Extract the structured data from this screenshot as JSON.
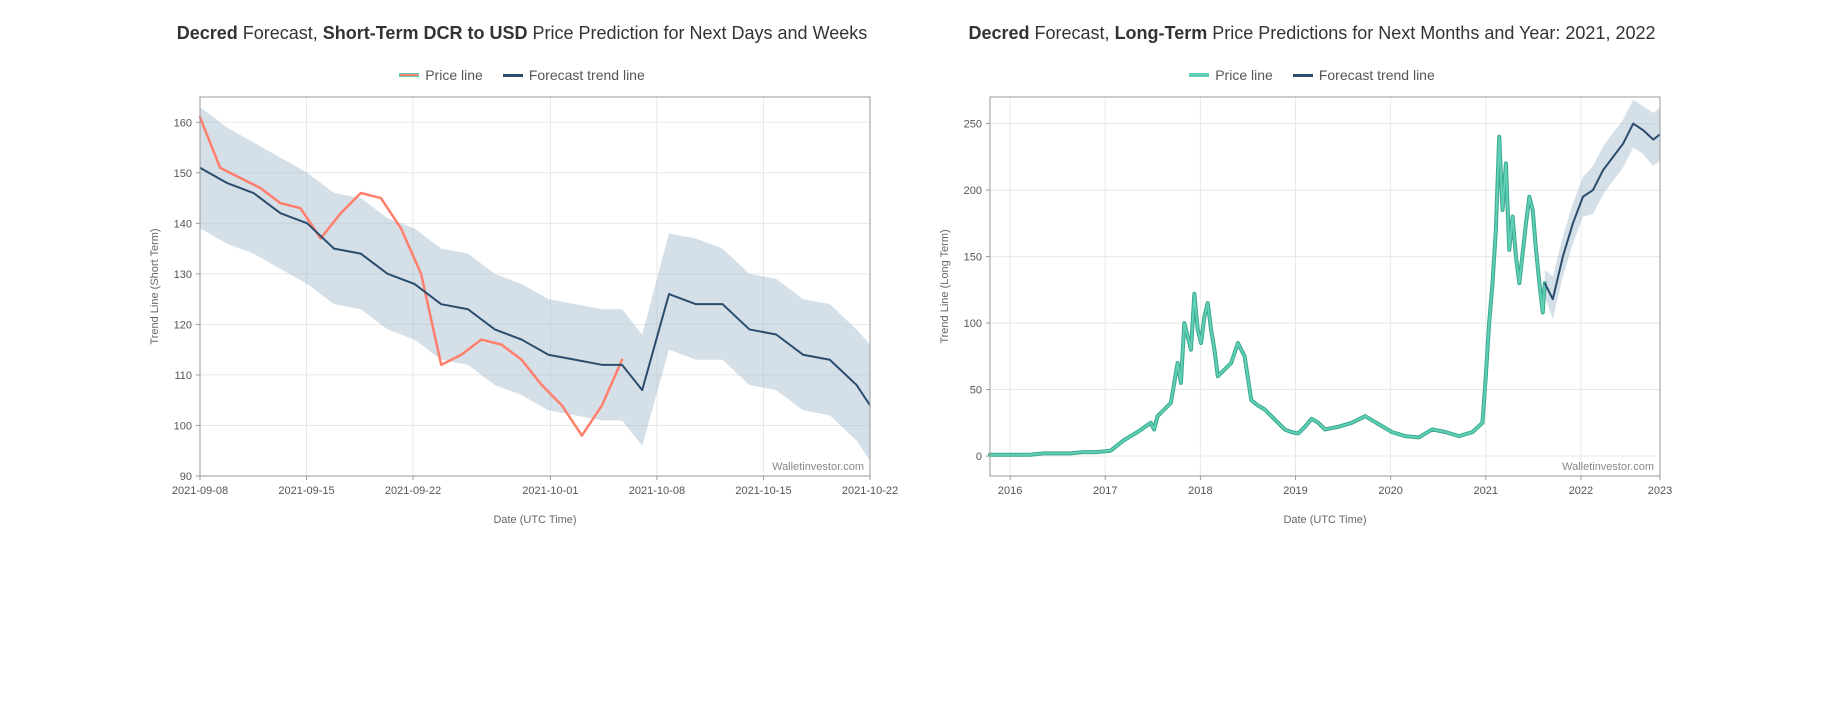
{
  "left": {
    "title_parts": [
      "Decred",
      " Forecast, ",
      "Short-Term DCR to USD",
      " Price Prediction for Next Days and Weeks"
    ],
    "title_bold_idx": [
      0,
      2
    ],
    "legend": {
      "price": "Price line",
      "forecast": "Forecast trend line"
    },
    "type": "line",
    "xlabel": "Date (UTC Time)",
    "ylabel": "Trend Line (Short Term)",
    "ylim": [
      90,
      165
    ],
    "yticks": [
      90,
      100,
      110,
      120,
      130,
      140,
      150,
      160
    ],
    "xticks": [
      "2021-09-08",
      "2021-09-15",
      "2021-09-22",
      "2021-10-01",
      "2021-10-08",
      "2021-10-15",
      "2021-10-22"
    ],
    "xtick_pos": [
      0,
      0.159,
      0.318,
      0.523,
      0.682,
      0.841,
      1.0
    ],
    "watermark": "Walletinvestor.com",
    "colors": {
      "price": "#ff7f6d",
      "forecast": "#2a4d6e",
      "band": "#9fb8cc",
      "band_opacity": 0.45,
      "grid": "#e8e8e8",
      "border": "#999999",
      "bg": "#ffffff"
    },
    "line_width": {
      "price": 2.5,
      "forecast": 2
    },
    "x": [
      0,
      0.03,
      0.06,
      0.09,
      0.12,
      0.15,
      0.18,
      0.21,
      0.24,
      0.27,
      0.3,
      0.33,
      0.36,
      0.39,
      0.42,
      0.45,
      0.48,
      0.51,
      0.54,
      0.57,
      0.6,
      0.63
    ],
    "price": [
      161,
      151,
      149,
      147,
      144,
      143,
      137,
      142,
      146,
      145,
      139,
      130,
      112,
      114,
      117,
      116,
      113,
      108,
      104,
      98,
      104,
      113
    ],
    "forecast_x": [
      0,
      0.04,
      0.08,
      0.12,
      0.16,
      0.2,
      0.24,
      0.28,
      0.32,
      0.36,
      0.4,
      0.44,
      0.48,
      0.52,
      0.56,
      0.6,
      0.63,
      0.66,
      0.7,
      0.74,
      0.78,
      0.82,
      0.86,
      0.9,
      0.94,
      0.98,
      1.0
    ],
    "forecast": [
      151,
      148,
      146,
      142,
      140,
      135,
      134,
      130,
      128,
      124,
      123,
      119,
      117,
      114,
      113,
      112,
      112,
      107,
      126,
      124,
      124,
      119,
      118,
      114,
      113,
      108,
      104
    ],
    "band_upper": [
      163,
      159,
      156,
      153,
      150,
      146,
      145,
      141,
      139,
      135,
      134,
      130,
      128,
      125,
      124,
      123,
      123,
      118,
      138,
      137,
      135,
      130,
      129,
      125,
      124,
      119,
      116
    ],
    "band_lower": [
      139,
      136,
      134,
      131,
      128,
      124,
      123,
      119,
      117,
      113,
      112,
      108,
      106,
      103,
      102,
      101,
      101,
      96,
      115,
      113,
      113,
      108,
      107,
      103,
      102,
      97,
      93
    ]
  },
  "right": {
    "title_parts": [
      "Decred",
      " Forecast, ",
      "Long-Term",
      " Price Predictions for Next Months and Year: 2021, 2022"
    ],
    "title_bold_idx": [
      0,
      2
    ],
    "legend": {
      "price": "Price line",
      "forecast": "Forecast trend line"
    },
    "type": "line",
    "xlabel": "Date (UTC Time)",
    "ylabel": "Trend Line (Long Term)",
    "ylim": [
      -15,
      270
    ],
    "yticks": [
      0,
      50,
      100,
      150,
      200,
      250
    ],
    "xticks": [
      "2016",
      "2017",
      "2018",
      "2019",
      "2020",
      "2021",
      "2022",
      "2023"
    ],
    "xtick_pos": [
      0.03,
      0.172,
      0.314,
      0.456,
      0.598,
      0.74,
      0.882,
      1.0
    ],
    "watermark": "Walletinvestor.com",
    "colors": {
      "price": "#5fd0b5",
      "price_outline": "#3aa88f",
      "forecast": "#2a4d6e",
      "band": "#9fb8cc",
      "band_opacity": 0.45,
      "grid": "#e8e8e8",
      "border": "#999999",
      "bg": "#ffffff"
    },
    "line_width": {
      "price": 2,
      "price_outline": 4,
      "forecast": 2
    },
    "price_x": [
      0,
      0.02,
      0.04,
      0.06,
      0.08,
      0.1,
      0.12,
      0.14,
      0.16,
      0.18,
      0.2,
      0.22,
      0.24,
      0.245,
      0.25,
      0.26,
      0.27,
      0.28,
      0.285,
      0.29,
      0.3,
      0.305,
      0.31,
      0.315,
      0.32,
      0.325,
      0.33,
      0.335,
      0.34,
      0.35,
      0.36,
      0.37,
      0.38,
      0.39,
      0.4,
      0.41,
      0.42,
      0.43,
      0.44,
      0.45,
      0.46,
      0.47,
      0.48,
      0.49,
      0.5,
      0.52,
      0.54,
      0.56,
      0.58,
      0.6,
      0.62,
      0.64,
      0.66,
      0.68,
      0.7,
      0.72,
      0.735,
      0.74,
      0.745,
      0.75,
      0.755,
      0.76,
      0.765,
      0.77,
      0.775,
      0.78,
      0.785,
      0.79,
      0.8,
      0.805,
      0.81,
      0.815,
      0.82,
      0.825,
      0.828
    ],
    "price_y": [
      1,
      1,
      1,
      1,
      2,
      2,
      2,
      3,
      3,
      4,
      12,
      18,
      25,
      20,
      30,
      35,
      40,
      70,
      55,
      100,
      80,
      122,
      95,
      85,
      105,
      115,
      95,
      80,
      60,
      65,
      70,
      85,
      75,
      42,
      38,
      35,
      30,
      25,
      20,
      18,
      17,
      22,
      28,
      25,
      20,
      22,
      25,
      30,
      24,
      18,
      15,
      14,
      20,
      18,
      15,
      18,
      25,
      60,
      100,
      130,
      170,
      240,
      185,
      220,
      155,
      180,
      150,
      130,
      175,
      195,
      185,
      155,
      130,
      108,
      130
    ],
    "forecast_x": [
      0.828,
      0.84,
      0.855,
      0.87,
      0.885,
      0.9,
      0.915,
      0.93,
      0.945,
      0.96,
      0.975,
      0.99,
      1.0
    ],
    "forecast_y": [
      130,
      118,
      150,
      175,
      195,
      200,
      215,
      225,
      235,
      250,
      245,
      238,
      242
    ],
    "band_upper": [
      140,
      135,
      165,
      190,
      210,
      218,
      233,
      243,
      253,
      268,
      263,
      258,
      262
    ],
    "band_lower": [
      120,
      103,
      135,
      160,
      180,
      182,
      197,
      207,
      217,
      232,
      227,
      218,
      222
    ]
  }
}
